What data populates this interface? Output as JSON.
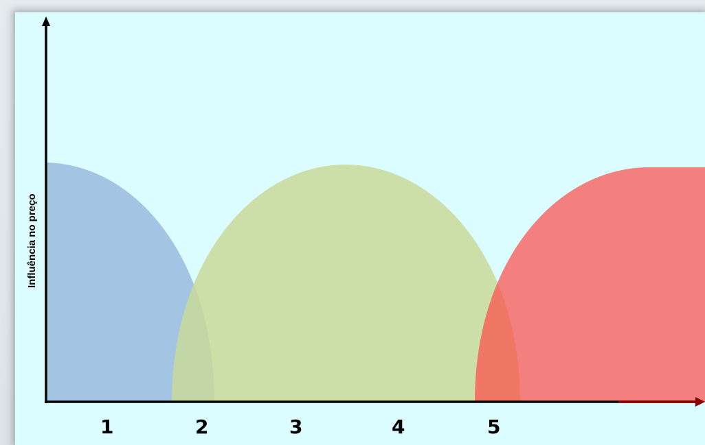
{
  "diagram": {
    "y_axis_label": "Influência no preço",
    "x_ticks": [
      "1",
      "2",
      "3",
      "4",
      "5"
    ],
    "regions": [
      {
        "id": "phase-blue",
        "color": "#7f9fd0",
        "opacity": 0.6
      },
      {
        "id": "phase-green",
        "color": "#c9d99a",
        "opacity": 0.85
      },
      {
        "id": "phase-red",
        "color": "#ff4848",
        "opacity": 0.7
      }
    ],
    "colors": {
      "background": "#dbfdff",
      "y_axis": "#000000",
      "x_axis": "#8b0000"
    }
  }
}
